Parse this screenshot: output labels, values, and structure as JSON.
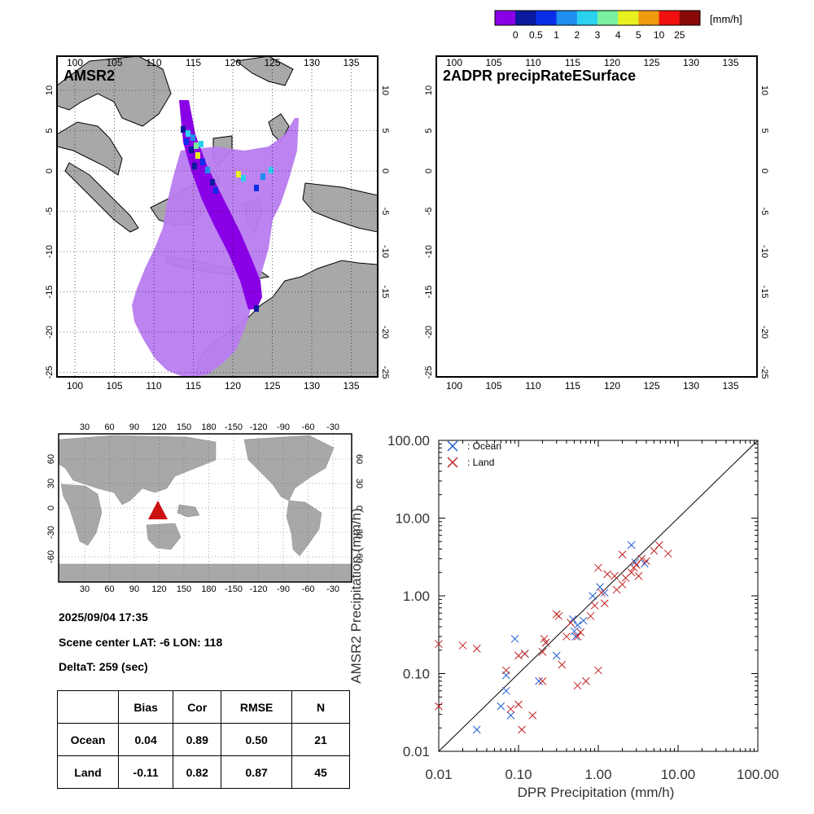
{
  "colorbar": {
    "unit": "[mm/h]",
    "tick_labels": [
      "0",
      "0.5",
      "1",
      "2",
      "3",
      "4",
      "5",
      "10",
      "25"
    ],
    "colors": [
      "#8a00e6",
      "#0a1a9c",
      "#0a2ee8",
      "#1f8ef0",
      "#2ad2f0",
      "#7af0a0",
      "#e8f020",
      "#f09a10",
      "#f01010",
      "#8a0a0a"
    ]
  },
  "maps": {
    "left": {
      "title": "AMSR2"
    },
    "right": {
      "title": "2ADPR precipRateESurface"
    },
    "lon_labels": [
      "100",
      "105",
      "110",
      "115",
      "120",
      "125",
      "130",
      "135"
    ],
    "lat_labels": [
      "10",
      "5",
      "0",
      "-5",
      "-10",
      "-15",
      "-20",
      "-25"
    ],
    "land_color": "#a8a8a8",
    "swath_color_wide": "#b87cf0",
    "swath_color_narrow": "#8a00e6"
  },
  "world_map": {
    "top_lon_labels": [
      "30",
      "60",
      "90",
      "120",
      "150",
      "180",
      "-150",
      "-120",
      "-90",
      "-60",
      "-30"
    ],
    "bottom_lon_labels": [
      "30",
      "60",
      "90",
      "120",
      "150",
      "180",
      "-150",
      "-120",
      "-90",
      "-60",
      "-30"
    ],
    "lat_labels": [
      "60",
      "30",
      "0",
      "-30",
      "-60"
    ],
    "marker_color": "#cc1111"
  },
  "info": {
    "datetime": "2025/09/04 17:35",
    "scene_center": "Scene center LAT: -6   LON: 118",
    "delta_t": "DeltaT:  259 (sec)"
  },
  "stats_table": {
    "headers": [
      "",
      "Bias",
      "Cor",
      "RMSE",
      "N"
    ],
    "rows": [
      [
        "Ocean",
        "0.04",
        "0.89",
        "0.50",
        "21"
      ],
      [
        "Land",
        "-0.11",
        "0.82",
        "0.87",
        "45"
      ]
    ]
  },
  "chart_data": {
    "type": "scatter",
    "xlabel": "DPR Precipitation (mm/h)",
    "ylabel": "AMSR2 Precipitation (mm/h)",
    "xscale": "log",
    "yscale": "log",
    "xlim": [
      0.01,
      100
    ],
    "ylim": [
      0.01,
      100
    ],
    "x_tick_labels": [
      "0.01",
      "0.10",
      "1.00",
      "10.00",
      "100.00"
    ],
    "y_tick_labels": [
      "0.01",
      "0.10",
      "1.00",
      "10.00",
      "100.00"
    ],
    "reference_line": "1:1",
    "legend_position": "top-left",
    "series": [
      {
        "name": ": Ocean",
        "color": "#1f5fd6",
        "marker": "x",
        "points": [
          [
            0.03,
            0.019
          ],
          [
            0.06,
            0.038
          ],
          [
            0.07,
            0.06
          ],
          [
            0.07,
            0.095
          ],
          [
            0.08,
            0.029
          ],
          [
            0.09,
            0.28
          ],
          [
            0.18,
            0.08
          ],
          [
            0.3,
            0.17
          ],
          [
            0.48,
            0.5
          ],
          [
            0.52,
            0.3
          ],
          [
            0.55,
            0.42
          ],
          [
            0.85,
            1.0
          ],
          [
            1.05,
            1.3
          ],
          [
            2.6,
            4.5
          ],
          [
            3.8,
            2.6
          ],
          [
            1.2,
            1.1
          ],
          [
            0.5,
            0.35
          ],
          [
            2.9,
            2.7
          ],
          [
            0.12,
            0.18
          ],
          [
            0.65,
            0.48
          ],
          [
            0.22,
            0.25
          ]
        ]
      },
      {
        "name": ": Land",
        "color": "#c42020",
        "marker": "x",
        "points": [
          [
            0.01,
            0.24
          ],
          [
            0.01,
            0.038
          ],
          [
            0.02,
            0.23
          ],
          [
            0.03,
            0.21
          ],
          [
            0.07,
            0.11
          ],
          [
            0.08,
            0.035
          ],
          [
            0.1,
            0.17
          ],
          [
            0.12,
            0.18
          ],
          [
            0.1,
            0.04
          ],
          [
            0.11,
            0.019
          ],
          [
            0.15,
            0.029
          ],
          [
            0.2,
            0.19
          ],
          [
            0.21,
            0.28
          ],
          [
            0.22,
            0.25
          ],
          [
            0.3,
            0.58
          ],
          [
            0.32,
            0.55
          ],
          [
            0.35,
            0.13
          ],
          [
            0.4,
            0.3
          ],
          [
            0.45,
            0.45
          ],
          [
            0.55,
            0.07
          ],
          [
            0.6,
            0.34
          ],
          [
            0.7,
            0.08
          ],
          [
            0.8,
            0.55
          ],
          [
            0.9,
            0.75
          ],
          [
            1.0,
            0.11
          ],
          [
            1.0,
            2.3
          ],
          [
            1.1,
            1.1
          ],
          [
            1.2,
            0.8
          ],
          [
            1.3,
            1.9
          ],
          [
            1.7,
            1.2
          ],
          [
            2.0,
            1.4
          ],
          [
            2.0,
            3.4
          ],
          [
            2.2,
            1.7
          ],
          [
            2.8,
            2.3
          ],
          [
            3.0,
            2.5
          ],
          [
            3.2,
            1.8
          ],
          [
            3.5,
            3.0
          ],
          [
            4.0,
            2.8
          ],
          [
            5.0,
            3.8
          ],
          [
            5.8,
            4.5
          ],
          [
            7.5,
            3.5
          ],
          [
            1.6,
            1.8
          ],
          [
            0.55,
            0.3
          ],
          [
            2.6,
            2.0
          ],
          [
            0.2,
            0.08
          ]
        ]
      }
    ]
  }
}
